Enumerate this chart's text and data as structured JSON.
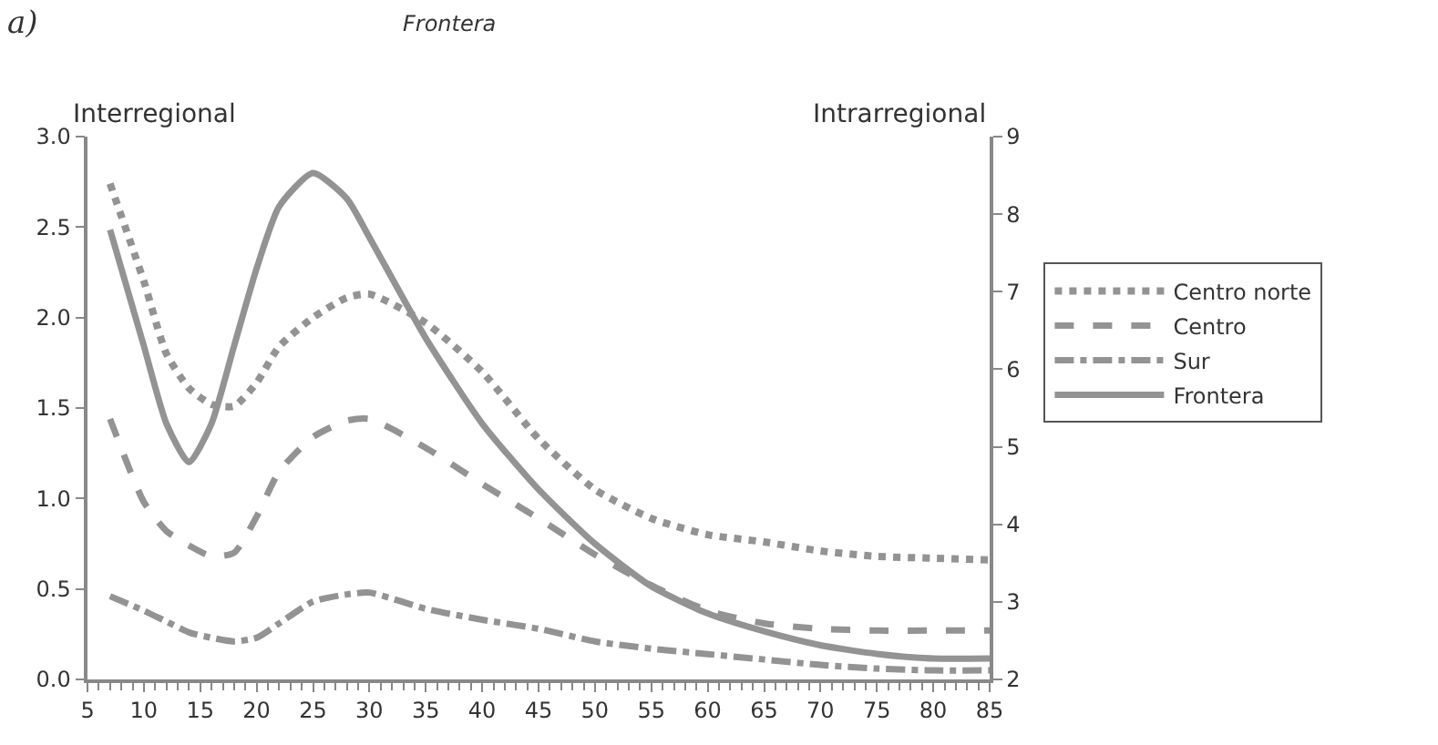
{
  "chart_data": {
    "type": "line",
    "title": "Frontera",
    "ylabel": "Interregional",
    "y2label": "Intrarregional",
    "annotations": [
      "a)"
    ],
    "xlim": [
      5,
      85
    ],
    "xticks": [
      5,
      10,
      15,
      20,
      25,
      30,
      35,
      40,
      45,
      50,
      55,
      60,
      65,
      70,
      75,
      80,
      85
    ],
    "ylim": [
      0,
      3
    ],
    "yticks": [
      {
        "value": 0,
        "label": "0.0"
      },
      {
        "value": 0.5,
        "label": "0.5"
      },
      {
        "value": 1,
        "label": "1.0"
      },
      {
        "value": 1.5,
        "label": "1.5"
      },
      {
        "value": 2,
        "label": "2.0"
      },
      {
        "value": 2.5,
        "label": "2.5"
      },
      {
        "value": 3,
        "label": "3.0"
      }
    ],
    "y2lim": [
      2,
      9
    ],
    "y2ticks": [
      2,
      3,
      4,
      5,
      6,
      7,
      8,
      9
    ],
    "legend": "right",
    "marker": "none",
    "x": [
      7,
      10,
      12,
      14,
      16,
      18,
      20,
      22,
      25,
      28,
      30,
      35,
      40,
      45,
      50,
      55,
      60,
      65,
      70,
      75,
      80,
      85
    ],
    "series": [
      {
        "name": "Centro norte",
        "color": "#939393",
        "line_style": "dotted",
        "values": [
          2.74,
          2.2,
          1.8,
          1.61,
          1.52,
          1.51,
          1.64,
          1.84,
          2.0,
          2.11,
          2.13,
          1.97,
          1.7,
          1.33,
          1.05,
          0.89,
          0.8,
          0.76,
          0.71,
          0.68,
          0.67,
          0.66
        ]
      },
      {
        "name": "Centro",
        "color": "#939393",
        "line_style": "dashed",
        "values": [
          1.44,
          0.98,
          0.82,
          0.74,
          0.68,
          0.7,
          0.9,
          1.15,
          1.34,
          1.43,
          1.44,
          1.28,
          1.08,
          0.89,
          0.69,
          0.52,
          0.38,
          0.31,
          0.28,
          0.27,
          0.27,
          0.27
        ]
      },
      {
        "name": "Sur",
        "color": "#939393",
        "line_style": "dashdot",
        "values": [
          0.46,
          0.38,
          0.32,
          0.26,
          0.23,
          0.21,
          0.23,
          0.31,
          0.43,
          0.47,
          0.48,
          0.39,
          0.33,
          0.28,
          0.21,
          0.17,
          0.14,
          0.11,
          0.08,
          0.06,
          0.05,
          0.05
        ]
      },
      {
        "name": "Frontera",
        "color": "#939393",
        "line_style": "solid",
        "axis": "y2",
        "values": [
          7.8,
          6.3,
          5.3,
          4.8,
          5.3,
          6.3,
          7.3,
          8.1,
          8.53,
          8.2,
          7.7,
          6.4,
          5.3,
          4.45,
          3.75,
          3.2,
          2.85,
          2.62,
          2.44,
          2.33,
          2.27,
          2.27
        ]
      }
    ]
  }
}
